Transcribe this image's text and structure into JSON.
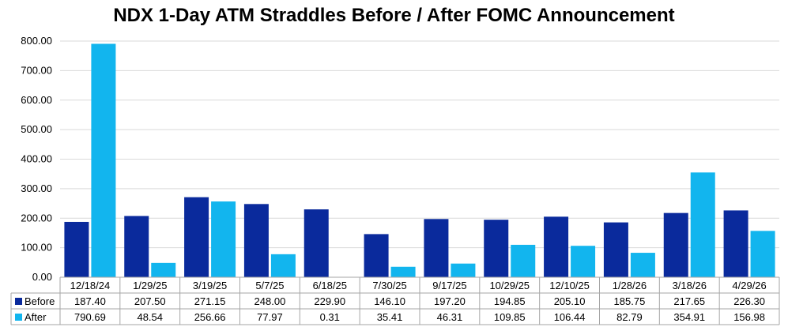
{
  "chart_data": {
    "type": "bar",
    "title": "NDX 1-Day ATM Straddles Before / After FOMC Announcement",
    "categories": [
      "12/18/24",
      "1/29/25",
      "3/19/25",
      "5/7/25",
      "6/18/25",
      "7/30/25",
      "9/17/25",
      "10/29/25",
      "12/10/25",
      "1/28/26",
      "3/18/26",
      "4/29/26"
    ],
    "series": [
      {
        "name": "Before",
        "color": "#0a2a9c",
        "values": [
          187.4,
          207.5,
          271.15,
          248.0,
          229.9,
          146.1,
          197.2,
          194.85,
          205.1,
          185.75,
          217.65,
          226.3
        ],
        "labels": [
          "187.40",
          "207.50",
          "271.15",
          "248.00",
          "229.90",
          "146.10",
          "197.20",
          "194.85",
          "205.10",
          "185.75",
          "217.65",
          "226.30"
        ]
      },
      {
        "name": "After",
        "color": "#12b5ee",
        "values": [
          790.69,
          48.54,
          256.66,
          77.97,
          0.31,
          35.41,
          46.31,
          109.85,
          106.44,
          82.79,
          354.91,
          156.98
        ],
        "labels": [
          "790.69",
          "48.54",
          "256.66",
          "77.97",
          "0.31",
          "35.41",
          "46.31",
          "109.85",
          "106.44",
          "82.79",
          "354.91",
          "156.98"
        ]
      }
    ],
    "ylim": [
      0,
      800
    ],
    "yticks": [
      "0.00",
      "100.00",
      "200.00",
      "300.00",
      "400.00",
      "500.00",
      "600.00",
      "700.00",
      "800.00"
    ],
    "grid": true,
    "legend": "data-table"
  }
}
